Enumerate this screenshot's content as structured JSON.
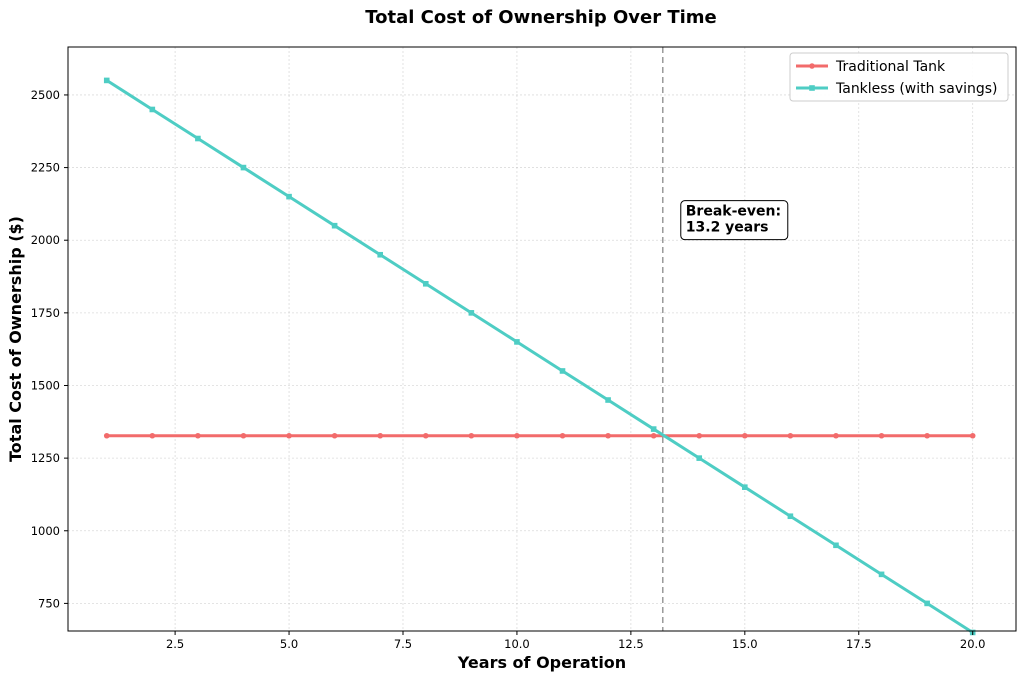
{
  "chart_data": {
    "type": "line",
    "title": "Total Cost of Ownership Over Time",
    "xlabel": "Years of Operation",
    "ylabel": "Total Cost of Ownership ($)",
    "xlim": [
      0.15,
      20.95
    ],
    "ylim": [
      655,
      2665
    ],
    "x_ticks": [
      2.5,
      5.0,
      7.5,
      10.0,
      12.5,
      15.0,
      17.5,
      20.0
    ],
    "x_tick_labels": [
      "2.5",
      "5.0",
      "7.5",
      "10.0",
      "12.5",
      "15.0",
      "17.5",
      "20.0"
    ],
    "y_ticks": [
      750,
      1000,
      1250,
      1500,
      1750,
      2000,
      2250,
      2500
    ],
    "y_tick_labels": [
      "750",
      "1000",
      "1250",
      "1500",
      "1750",
      "2000",
      "2250",
      "2500"
    ],
    "grid": true,
    "legend_position": "top-right",
    "x": [
      1,
      2,
      3,
      4,
      5,
      6,
      7,
      8,
      9,
      10,
      11,
      12,
      13,
      14,
      15,
      16,
      17,
      18,
      19,
      20
    ],
    "series": [
      {
        "name": "Traditional Tank",
        "color": "#f26b6b",
        "marker": "circle",
        "values": [
          1327,
          1327,
          1327,
          1327,
          1327,
          1327,
          1327,
          1327,
          1327,
          1327,
          1327,
          1327,
          1327,
          1327,
          1327,
          1327,
          1327,
          1327,
          1327,
          1327
        ]
      },
      {
        "name": "Tankless (with savings)",
        "color": "#4ecdc4",
        "marker": "square",
        "values": [
          2550,
          2450,
          2350,
          2250,
          2150,
          2050,
          1950,
          1850,
          1750,
          1650,
          1550,
          1450,
          1350,
          1250,
          1150,
          1050,
          950,
          850,
          750,
          650
        ]
      }
    ],
    "break_even": {
      "x": 13.2,
      "line_color": "#999999",
      "label_line1": "Break-even:",
      "label_line2": "13.2 years"
    }
  }
}
